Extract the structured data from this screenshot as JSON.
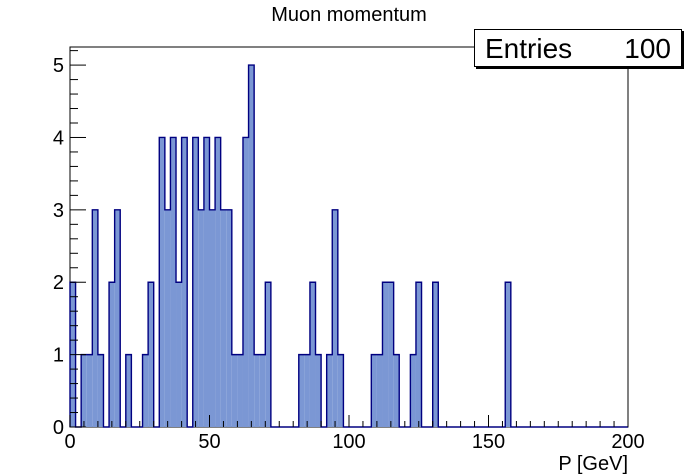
{
  "chart_data": {
    "type": "bar",
    "title": "Muon momentum",
    "xlabel": "P [GeV]",
    "ylabel": "",
    "xlim": [
      0,
      200
    ],
    "ylim": [
      0,
      5.25
    ],
    "bin_width": 2,
    "x_ticks": [
      0,
      50,
      100,
      150,
      200
    ],
    "y_ticks": [
      0,
      1,
      2,
      3,
      4,
      5
    ],
    "stats": {
      "label": "Entries",
      "value": "100"
    },
    "fill_color": "#7b97d4",
    "line_color": "#000080",
    "values": [
      2,
      0,
      1,
      1,
      3,
      1,
      0,
      2,
      3,
      0,
      1,
      0,
      0,
      1,
      2,
      0,
      4,
      3,
      4,
      2,
      4,
      0,
      4,
      3,
      4,
      3,
      4,
      3,
      3,
      1,
      1,
      4,
      5,
      1,
      1,
      2,
      0,
      0,
      0,
      0,
      0,
      1,
      1,
      2,
      1,
      0,
      1,
      3,
      1,
      0,
      0,
      0,
      0,
      0,
      1,
      1,
      2,
      2,
      1,
      0,
      0,
      1,
      2,
      0,
      0,
      2,
      0,
      0,
      0,
      0,
      0,
      0,
      0,
      0,
      0,
      0,
      0,
      0,
      2,
      0,
      0,
      0,
      0,
      0,
      0,
      0,
      0,
      0,
      0,
      0,
      0,
      0,
      0,
      0,
      0,
      0,
      0,
      0,
      0,
      0
    ]
  }
}
